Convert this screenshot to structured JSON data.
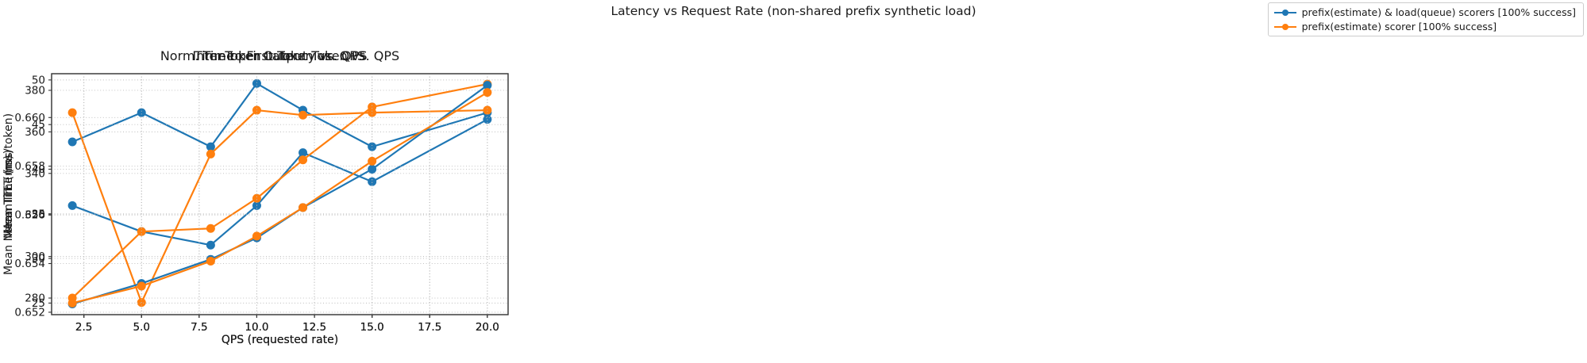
{
  "suptitle": "Latency vs Request Rate (non-shared prefix synthetic load)",
  "legend": {
    "items": [
      {
        "label": "prefix(estimate) & load(queue) scorers [100% success]",
        "color": "#1f77b4"
      },
      {
        "label": "prefix(estimate) scorer [100% success]",
        "color": "#ff7f0e"
      }
    ]
  },
  "chart_data": [
    {
      "type": "line",
      "title": "Time to First Token vs. QPS",
      "xlabel": "QPS (requested rate)",
      "ylabel": "Mean TTFT (ms)",
      "x": [
        2,
        5,
        8,
        10,
        12,
        15,
        20
      ],
      "xlim": [
        1.1,
        20.9
      ],
      "xticks": [
        2.5,
        5.0,
        7.5,
        10.0,
        12.5,
        15.0,
        17.5,
        20.0
      ],
      "xtick_decimals": 1,
      "ylim": [
        272,
        388
      ],
      "yticks": [
        280,
        300,
        320,
        340,
        360,
        380
      ],
      "ytick_decimals": 0,
      "grid": true,
      "series": [
        {
          "name": "prefix(estimate) & load(queue) scorers [100% success]",
          "color": "#1f77b4",
          "values": [
            324.5,
            312.0,
            305.5,
            324.5,
            350.0,
            336.0,
            366.0
          ]
        },
        {
          "name": "prefix(estimate) scorer [100% success]",
          "color": "#ff7f0e",
          "values": [
            280.0,
            312.0,
            313.5,
            328.0,
            346.5,
            372.0,
            383.0
          ]
        }
      ]
    },
    {
      "type": "line",
      "title": "Norm. Time per Output Token vs. QPS",
      "xlabel": "QPS (requested rate)",
      "ylabel": "Mean Norm. Time (ms/token)",
      "x": [
        2,
        5,
        8,
        10,
        12,
        15,
        20
      ],
      "xlim": [
        1.1,
        20.9
      ],
      "xticks": [
        2.5,
        5.0,
        7.5,
        10.0,
        12.5,
        15.0,
        17.5,
        20.0
      ],
      "xtick_decimals": 1,
      "ylim": [
        0.6519,
        0.6618
      ],
      "yticks": [
        0.652,
        0.654,
        0.656,
        0.658,
        0.66
      ],
      "ytick_decimals": 3,
      "grid": true,
      "series": [
        {
          "name": "prefix(estimate) & load(queue) scorers [100% success]",
          "color": "#1f77b4",
          "values": [
            0.659,
            0.6602,
            0.6588,
            0.6614,
            0.6603,
            0.6588,
            0.6602
          ]
        },
        {
          "name": "prefix(estimate) scorer [100% success]",
          "color": "#ff7f0e",
          "values": [
            0.6602,
            0.6524,
            0.6585,
            0.6603,
            0.6601,
            0.6602,
            0.6603
          ]
        }
      ]
    },
    {
      "type": "line",
      "title": "Inter-Token Latency vs. QPS",
      "xlabel": "QPS (requested rate)",
      "ylabel": "Mean ITL (ms)",
      "x": [
        2,
        5,
        8,
        10,
        12,
        15,
        20
      ],
      "xlim": [
        1.1,
        20.9
      ],
      "xticks": [
        2.5,
        5.0,
        7.5,
        10.0,
        12.5,
        15.0,
        17.5,
        20.0
      ],
      "xtick_decimals": 1,
      "ylim": [
        23.7,
        50.7
      ],
      "yticks": [
        25,
        30,
        35,
        40,
        45,
        50
      ],
      "ytick_decimals": 0,
      "grid": true,
      "series": [
        {
          "name": "prefix(estimate) & load(queue) scorers [100% success]",
          "color": "#1f77b4",
          "values": [
            24.9,
            27.2,
            29.9,
            32.3,
            35.7,
            40.0,
            49.4
          ]
        },
        {
          "name": "prefix(estimate) scorer [100% success]",
          "color": "#ff7f0e",
          "values": [
            25.0,
            26.9,
            29.7,
            32.5,
            35.7,
            40.9,
            48.6
          ]
        }
      ]
    }
  ]
}
